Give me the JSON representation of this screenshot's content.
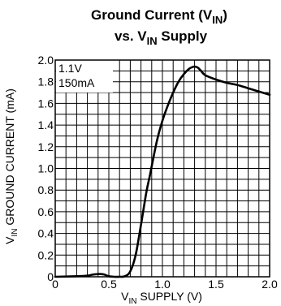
{
  "chart_data": {
    "type": "line",
    "title_line1": {
      "text": "Ground Current (V",
      "sub": "IN",
      "tail": ")"
    },
    "title_line2": {
      "text": "vs. V",
      "sub": "IN",
      "tail": " Supply"
    },
    "xlabel": {
      "text": "V",
      "sub": "IN",
      "tail": " SUPPLY (V)"
    },
    "ylabel": {
      "text": "V",
      "sub": "IN",
      "tail": " GROUND CURRENT (mA)"
    },
    "annotations": [
      "1.1V",
      "150mA"
    ],
    "xlim": [
      0,
      2.0
    ],
    "ylim": [
      0,
      2.0
    ],
    "x_ticks": [
      0,
      0.5,
      1.0,
      1.5,
      2.0
    ],
    "x_tick_labels": [
      "0",
      "0.5",
      "1.0",
      "1.5",
      "2.0"
    ],
    "y_ticks": [
      0,
      0.2,
      0.4,
      0.6,
      0.8,
      1.0,
      1.2,
      1.4,
      1.6,
      1.8,
      2.0
    ],
    "y_tick_labels": [
      "0",
      "0.2",
      "0.4",
      "0.6",
      "0.8",
      "1.0",
      "1.2",
      "1.4",
      "1.6",
      "1.8",
      "2.0"
    ],
    "grid": true,
    "grid_x_step": 0.1,
    "grid_y_step": 0.1,
    "series": [
      {
        "color": "#000000",
        "x": [
          0,
          0.2,
          0.3,
          0.35,
          0.4,
          0.43,
          0.46,
          0.5,
          0.55,
          0.6,
          0.65,
          0.7,
          0.75,
          0.8,
          0.85,
          0.88,
          0.9,
          0.95,
          1.0,
          1.05,
          1.1,
          1.15,
          1.2,
          1.25,
          1.28,
          1.3,
          1.33,
          1.36,
          1.4,
          1.5,
          1.6,
          1.7,
          1.8,
          1.9,
          2.0
        ],
        "y": [
          0,
          0.005,
          0.01,
          0.02,
          0.025,
          0.025,
          0.02,
          0.005,
          0,
          0,
          0.005,
          0.05,
          0.2,
          0.48,
          0.78,
          0.92,
          1.02,
          1.26,
          1.44,
          1.58,
          1.7,
          1.8,
          1.87,
          1.92,
          1.935,
          1.94,
          1.93,
          1.9,
          1.86,
          1.82,
          1.79,
          1.77,
          1.74,
          1.71,
          1.68
        ]
      }
    ]
  }
}
